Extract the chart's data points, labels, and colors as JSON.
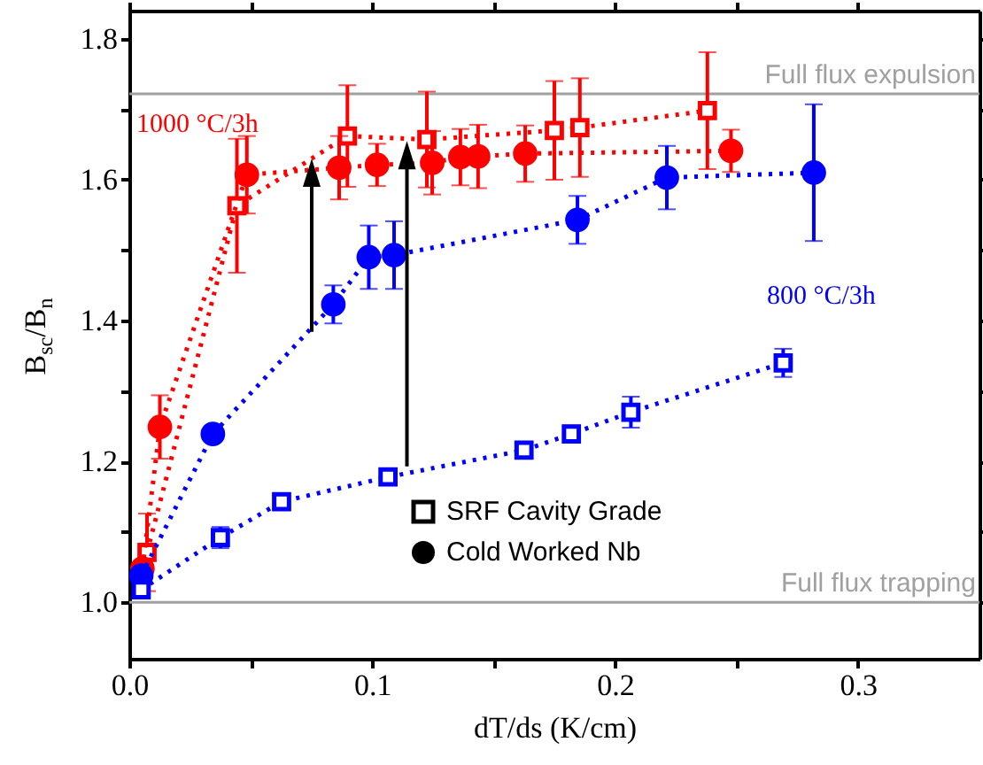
{
  "chart_data": {
    "type": "line",
    "xlabel": "dT/ds (K/cm)",
    "ylabel": "B$_{sc}$/B$_{n}$",
    "xlim": [
      0,
      0.35
    ],
    "xticks": [
      {
        "value": 0,
        "label": "0.0"
      },
      {
        "value": 0.05,
        "label": null
      },
      0.1,
      {
        "value": 0.15,
        "label": null
      },
      0.2,
      {
        "value": 0.25,
        "label": null
      },
      0.3
    ],
    "ylim": [
      0.92,
      1.84
    ],
    "yticks": [
      {
        "value": 1.0,
        "label": "1.0"
      },
      {
        "value": 1.1,
        "label": null
      },
      1.2,
      {
        "value": 1.3,
        "label": null
      },
      1.4,
      {
        "value": 1.5,
        "label": null
      },
      1.6,
      {
        "value": 1.7,
        "label": null
      },
      1.8
    ],
    "grid": false,
    "line_style": "dotted",
    "series": [
      {
        "color": "#ff0000",
        "marker": "square",
        "x": [
          0.0073,
          0.0443,
          0.0898,
          0.1225,
          0.175,
          0.1855,
          0.238
        ],
        "values": [
          1.071,
          1.563,
          1.662,
          1.657,
          1.67,
          1.674,
          1.698
        ],
        "errors": [
          0.055,
          0.095,
          0.072,
          0.068,
          0.07,
          0.07,
          0.083
        ]
      },
      {
        "color": "#ff0000",
        "marker": "circle",
        "x": [
          0.0054,
          0.0126,
          0.0484,
          0.0864,
          0.102,
          0.1247,
          0.1363,
          0.1436,
          0.163,
          0.2477
        ],
        "values": [
          1.048,
          1.249,
          1.607,
          1.617,
          1.621,
          1.624,
          1.632,
          1.633,
          1.637,
          1.641
        ],
        "errors": [
          0.01,
          0.045,
          0.055,
          0.045,
          0.03,
          0.045,
          0.04,
          0.045,
          0.04,
          0.03
        ]
      },
      {
        "color": "#0000ff",
        "marker": "circle",
        "x": [
          0.0049,
          0.0344,
          0.084,
          0.0986,
          0.109,
          0.1845,
          0.2213,
          0.2818
        ],
        "values": [
          1.038,
          1.239,
          1.423,
          1.49,
          1.493,
          1.543,
          1.603,
          1.61
        ],
        "errors": [
          null,
          null,
          0.027,
          0.045,
          0.048,
          0.034,
          0.045,
          0.097
        ]
      },
      {
        "color": "#0000ff",
        "marker": "square",
        "x": [
          0.0049,
          0.0375,
          0.0627,
          0.1065,
          0.1625,
          0.182,
          0.2065,
          0.2692
        ],
        "values": [
          1.018,
          1.092,
          1.143,
          1.178,
          1.216,
          1.239,
          1.27,
          1.34
        ],
        "errors": [
          null,
          0.015,
          null,
          null,
          null,
          0.012,
          0.022,
          0.02
        ]
      }
    ],
    "ref_lines": [
      {
        "axis": "y",
        "value": 1.722,
        "label": "Full flux expulsion",
        "color": "#a0a0a0"
      },
      {
        "axis": "y",
        "value": 1.0,
        "label": "Full flux trapping",
        "color": "#a0a0a0"
      }
    ],
    "annotations": [
      "1000 °C/3h",
      "800 °C/3h",
      "SRF Cavity Grade",
      "Cold Worked Nb"
    ]
  }
}
